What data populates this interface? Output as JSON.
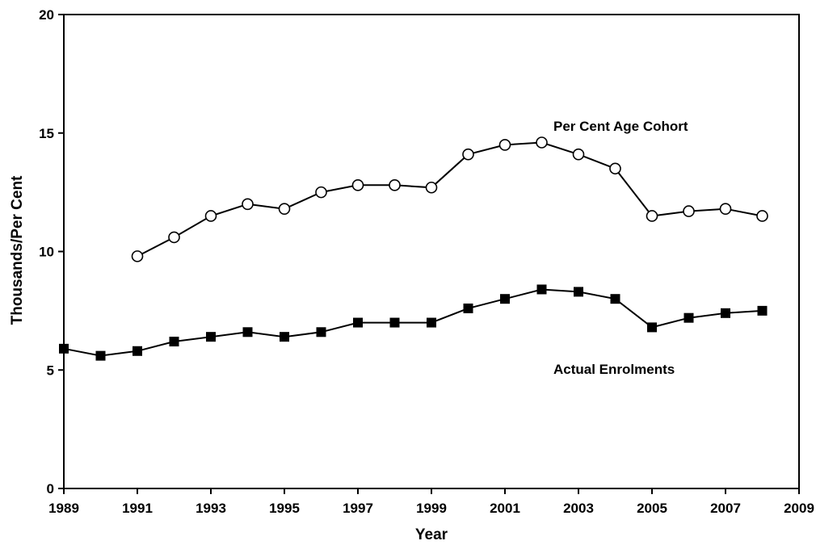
{
  "chart_data": {
    "type": "line",
    "title": "",
    "xlabel": "Year",
    "ylabel": "Thousands/Per Cent",
    "xlim": [
      1989,
      2009
    ],
    "ylim": [
      0,
      20
    ],
    "x_ticks": [
      "1989",
      "1991",
      "1993",
      "1995",
      "1997",
      "1999",
      "2001",
      "2003",
      "2005",
      "2007",
      "2009"
    ],
    "y_ticks": [
      "0",
      "5",
      "10",
      "15",
      "20"
    ],
    "grid": false,
    "legend": "none",
    "series": [
      {
        "name": "Per Cent Age Cohort",
        "marker": "open-circle",
        "color": "#000000",
        "x": [
          1991,
          1992,
          1993,
          1994,
          1995,
          1996,
          1997,
          1998,
          1999,
          2000,
          2001,
          2002,
          2003,
          2004,
          2005,
          2006,
          2007,
          2008
        ],
        "y": [
          9.8,
          10.6,
          11.5,
          12.0,
          11.8,
          12.5,
          12.8,
          12.8,
          12.7,
          14.1,
          14.5,
          14.6,
          14.1,
          13.5,
          11.5,
          11.7,
          11.8,
          11.5
        ]
      },
      {
        "name": "Actual Enrolments",
        "marker": "filled-square",
        "color": "#000000",
        "x": [
          1989,
          1990,
          1991,
          1992,
          1993,
          1994,
          1995,
          1996,
          1997,
          1998,
          1999,
          2000,
          2001,
          2002,
          2003,
          2004,
          2005,
          2006,
          2007,
          2008
        ],
        "y": [
          5.9,
          5.6,
          5.8,
          6.2,
          6.4,
          6.6,
          6.4,
          6.6,
          7.0,
          7.0,
          7.0,
          7.6,
          8.0,
          8.4,
          8.3,
          8.0,
          6.8,
          7.2,
          7.4,
          7.5
        ]
      }
    ]
  }
}
